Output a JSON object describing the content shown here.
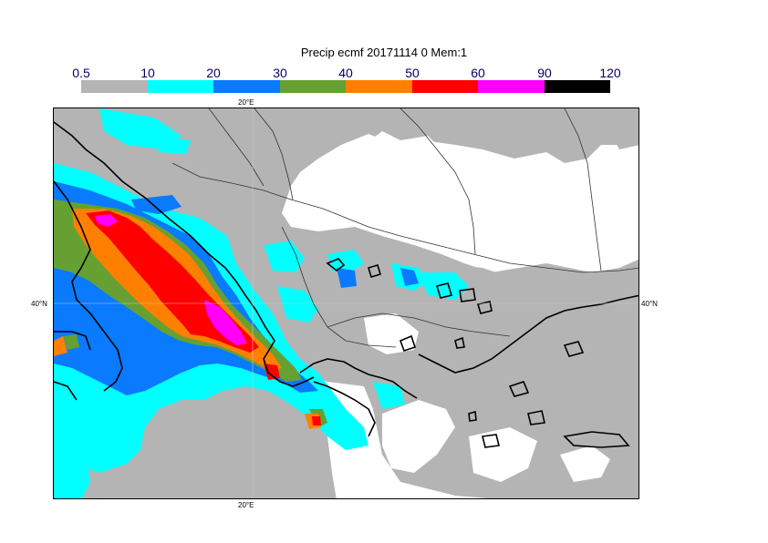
{
  "title": "Precip ecmf 20171114 0 Mem:1",
  "legend": {
    "ticks": [
      "0.5",
      "10",
      "20",
      "30",
      "40",
      "50",
      "60",
      "90",
      "120"
    ],
    "colors": [
      "#b4b4b4",
      "#00ffff",
      "#0a7aff",
      "#66a032",
      "#ff8000",
      "#ff0000",
      "#ff00ff",
      "#000000"
    ]
  },
  "map": {
    "lon_label_top": "20°E",
    "lon_label_bottom": "20°E",
    "lat_label_left": "40°N",
    "lat_label_right": "40°N",
    "region": "Balkans / Greece",
    "field": "precipitation"
  }
}
